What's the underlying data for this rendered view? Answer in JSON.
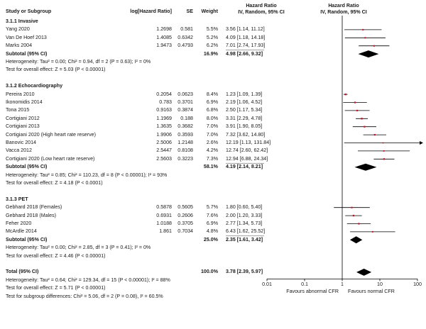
{
  "header": {
    "study_col": "Study or Subgroup",
    "loghr_col": "log[Hazard Ratio]",
    "se_col": "SE",
    "weight_col": "Weight",
    "hr_col_line1": "Hazard Ratio",
    "hr_col_line2": "IV, Random, 95% CI",
    "plot_col_line1": "Hazard Ratio",
    "plot_col_line2": "IV, Random, 95% CI"
  },
  "chart_data": {
    "type": "forest",
    "x_scale": "log",
    "xlim": [
      0.01,
      100
    ],
    "x_ticks": [
      "0.01",
      "0.1",
      "1",
      "10",
      "100"
    ],
    "x_tick_values": [
      0.01,
      0.1,
      1,
      10,
      100
    ],
    "favours_left": "Favours abnormal CFR",
    "favours_right": "Favours normal CFR",
    "groups": [
      {
        "name": "3.1.1 Invasive",
        "studies": [
          {
            "study": "Yang 2020",
            "loghr": "1.2698",
            "se": "0.581",
            "weight": "5.5%",
            "ci_text": "3.56 [1.14, 11.12]",
            "hr": 3.56,
            "lo": 1.14,
            "hi": 11.12
          },
          {
            "study": "Van De Hoef 2013",
            "loghr": "1.4085",
            "se": "0.6342",
            "weight": "5.2%",
            "ci_text": "4.09 [1.18, 14.18]",
            "hr": 4.09,
            "lo": 1.18,
            "hi": 14.18
          },
          {
            "study": "Marks 2004",
            "loghr": "1.9473",
            "se": "0.4793",
            "weight": "6.2%",
            "ci_text": "7.01 [2.74, 17.93]",
            "hr": 7.01,
            "lo": 2.74,
            "hi": 17.93
          }
        ],
        "subtotal": {
          "label": "Subtotal (95% CI)",
          "weight": "16.9%",
          "ci_text": "4.98 [2.66, 9.32]",
          "hr": 4.98,
          "lo": 2.66,
          "hi": 9.32
        },
        "heterogeneity": "Heterogeneity: Tau² = 0.00; Chi² = 0.94, df = 2 (P = 0.63); I² = 0%",
        "overall_test": "Test for overall effect: Z = 5.03 (P < 0.00001)"
      },
      {
        "name": "3.1.2 Echocardiography",
        "studies": [
          {
            "study": "Pereira 2010",
            "loghr": "0.2054",
            "se": "0.0623",
            "weight": "8.4%",
            "ci_text": "1.23 [1.09, 1.39]",
            "hr": 1.23,
            "lo": 1.09,
            "hi": 1.39
          },
          {
            "study": "Ikonomidis 2014",
            "loghr": "0.783",
            "se": "0.3701",
            "weight": "6.9%",
            "ci_text": "2.19 [1.06, 4.52]",
            "hr": 2.19,
            "lo": 1.06,
            "hi": 4.52
          },
          {
            "study": "Tona 2015",
            "loghr": "0.9163",
            "se": "0.3874",
            "weight": "6.8%",
            "ci_text": "2.50 [1.17, 5.34]",
            "hr": 2.5,
            "lo": 1.17,
            "hi": 5.34
          },
          {
            "study": "Cortigiani 2012",
            "loghr": "1.1969",
            "se": "0.188",
            "weight": "8.0%",
            "ci_text": "3.31 [2.29, 4.78]",
            "hr": 3.31,
            "lo": 2.29,
            "hi": 4.78
          },
          {
            "study": "Cortigiani 2013",
            "loghr": "1.3635",
            "se": "0.3682",
            "weight": "7.0%",
            "ci_text": "3.91 [1.90, 8.05]",
            "hr": 3.91,
            "lo": 1.9,
            "hi": 8.05
          },
          {
            "study": "Cortigiani 2020 (High heart rate reserve)",
            "loghr": "1.9906",
            "se": "0.3593",
            "weight": "7.0%",
            "ci_text": "7.32 [3.62, 14.80]",
            "hr": 7.32,
            "lo": 3.62,
            "hi": 14.8
          },
          {
            "study": "Banovic 2014",
            "loghr": "2.5006",
            "se": "1.2148",
            "weight": "2.6%",
            "ci_text": "12.19 [1.13, 131.84]",
            "hr": 12.19,
            "lo": 1.13,
            "hi": 131.84
          },
          {
            "study": "Vacca 2012",
            "loghr": "2.5447",
            "se": "0.8108",
            "weight": "4.2%",
            "ci_text": "12.74 [2.60, 62.42]",
            "hr": 12.74,
            "lo": 2.6,
            "hi": 62.42
          },
          {
            "study": "Cortigiani 2020 (Low heart rate reserve)",
            "loghr": "2.5603",
            "se": "0.3223",
            "weight": "7.3%",
            "ci_text": "12.94 [6.88, 24.34]",
            "hr": 12.94,
            "lo": 6.88,
            "hi": 24.34
          }
        ],
        "subtotal": {
          "label": "Subtotal (95% CI)",
          "weight": "58.1%",
          "ci_text": "4.19 [2.14, 8.21]",
          "hr": 4.19,
          "lo": 2.14,
          "hi": 8.21
        },
        "heterogeneity": "Heterogeneity: Tau² = 0.85; Chi² = 110.23, df = 8 (P < 0.00001); I² = 93%",
        "overall_test": "Test for overall effect: Z = 4.18 (P < 0.0001)"
      },
      {
        "name": "3.1.3 PET",
        "studies": [
          {
            "study": "Gebhard 2018 (Females)",
            "loghr": "0.5878",
            "se": "0.5605",
            "weight": "5.7%",
            "ci_text": "1.80 [0.60, 5.40]",
            "hr": 1.8,
            "lo": 0.6,
            "hi": 5.4
          },
          {
            "study": "Gebhard 2018 (Males)",
            "loghr": "0.6931",
            "se": "0.2606",
            "weight": "7.6%",
            "ci_text": "2.00 [1.20, 3.33]",
            "hr": 2.0,
            "lo": 1.2,
            "hi": 3.33
          },
          {
            "study": "Feher 2020",
            "loghr": "1.0188",
            "se": "0.3705",
            "weight": "6.9%",
            "ci_text": "2.77 [1.34, 5.73]",
            "hr": 2.77,
            "lo": 1.34,
            "hi": 5.73
          },
          {
            "study": "McArdle 2014",
            "loghr": "1.861",
            "se": "0.7034",
            "weight": "4.8%",
            "ci_text": "6.43 [1.62, 25.52]",
            "hr": 6.43,
            "lo": 1.62,
            "hi": 25.52
          }
        ],
        "subtotal": {
          "label": "Subtotal (95% CI)",
          "weight": "25.0%",
          "ci_text": "2.35 [1.61, 3.42]",
          "hr": 2.35,
          "lo": 1.61,
          "hi": 3.42
        },
        "heterogeneity": "Heterogeneity: Tau² = 0.00; Chi² = 2.85, df = 3 (P = 0.41); I² = 0%",
        "overall_test": "Test for overall effect: Z = 4.46 (P < 0.00001)"
      }
    ],
    "total": {
      "label": "Total (95% CI)",
      "weight": "100.0%",
      "ci_text": "3.78 [2.39, 5.97]",
      "hr": 3.78,
      "lo": 2.39,
      "hi": 5.97,
      "heterogeneity": "Heterogeneity: Tau² = 0.64; Chi² = 129.34, df = 15 (P < 0.00001); I² = 88%",
      "overall_test": "Test for overall effect: Z = 5.71 (P < 0.00001)",
      "subgroup_test": "Test for subgroup differences: Chi² = 5.06, df = 2 (P = 0.08), I² = 60.5%"
    },
    "colors": {
      "text": "#1a1a1a",
      "line": "#000000",
      "point": "#c0172b",
      "diamond": "#000000"
    }
  }
}
